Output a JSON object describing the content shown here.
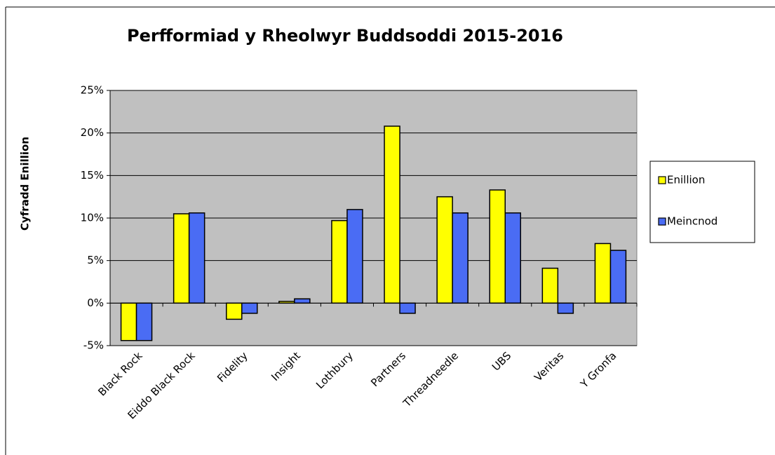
{
  "chart_data": {
    "type": "bar",
    "title": "Perfformiad y Rheolwyr Buddsoddi 2015-2016",
    "y_label": "Cyfradd Enillion",
    "categories": [
      "Black Rock",
      "Eiddo Black Rock",
      "Fidelity",
      "Insight",
      "Lothbury",
      "Partners",
      "Threadneedle",
      "UBS",
      "Veritas",
      "Y Gronfa"
    ],
    "series": [
      {
        "name": "Enillion",
        "color": "#ffff00",
        "values": [
          -4.4,
          10.5,
          -1.9,
          0.2,
          9.7,
          20.8,
          12.5,
          13.3,
          4.1,
          7.0
        ]
      },
      {
        "name": "Meincnod",
        "color": "#4a6cf4",
        "values": [
          -4.4,
          10.6,
          -1.2,
          0.5,
          11.0,
          -1.2,
          10.6,
          10.6,
          -1.2,
          6.2
        ]
      }
    ],
    "ylim": [
      -5,
      25
    ],
    "yticks": [
      {
        "value": -5,
        "label": "-5%"
      },
      {
        "value": 0,
        "label": "0%"
      },
      {
        "value": 5,
        "label": "5%"
      },
      {
        "value": 10,
        "label": "10%"
      },
      {
        "value": 15,
        "label": "15%"
      },
      {
        "value": 20,
        "label": "20%"
      },
      {
        "value": 25,
        "label": "25%"
      }
    ],
    "grid": true,
    "legend": "right",
    "plot_background": "#c0c0c0"
  }
}
